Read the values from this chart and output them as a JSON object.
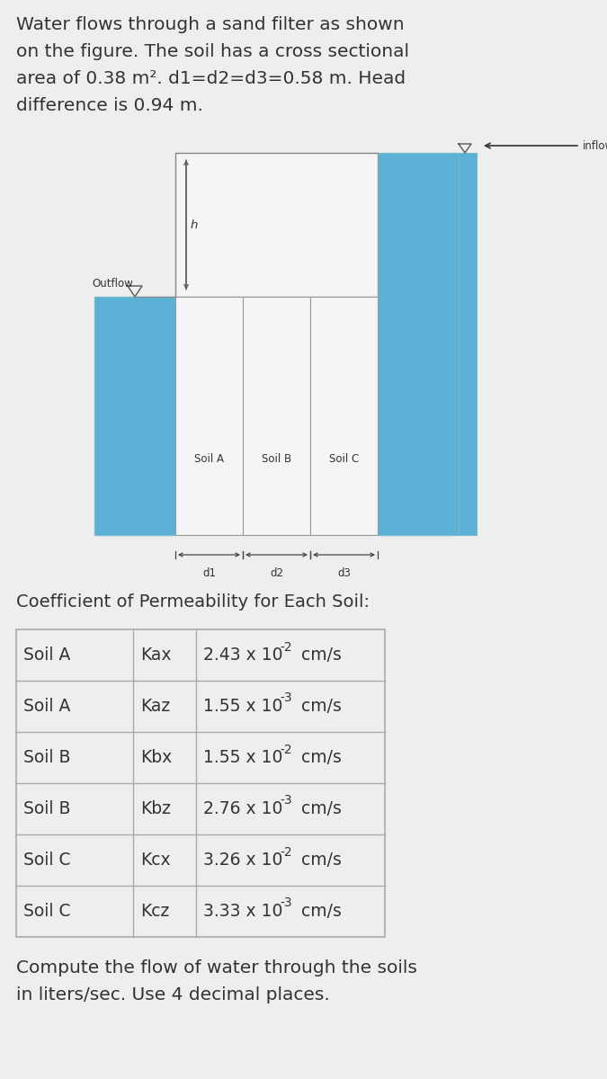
{
  "bg_color": "#eeeeee",
  "text_color": "#333333",
  "blue_color": "#5ab0d5",
  "white_color": "#f5f5f5",
  "border_color": "#999999",
  "header_text_lines": [
    "Water flows through a sand filter as shown",
    "on the figure. The soil has a cross sectional",
    "area of 0.38 m². d1=d2=d3=0.58 m. Head",
    "difference is 0.94 m."
  ],
  "header_fontsize": 14.5,
  "coeff_title": "Coefficient of Permeability for Each Soil:",
  "coeff_fontsize": 14,
  "table_rows": [
    [
      "Soil A",
      "Kax",
      "2.43 x 10",
      "-2",
      " cm/s"
    ],
    [
      "Soil A",
      "Kaz",
      "1.55 x 10",
      "-3",
      " cm/s"
    ],
    [
      "Soil B",
      "Kbx",
      "1.55 x 10",
      "-2",
      " cm/s"
    ],
    [
      "Soil B",
      "Kbz",
      "2.76 x 10",
      "-3",
      " cm/s"
    ],
    [
      "Soil C",
      "Kcx",
      "3.26 x 10",
      "-2",
      " cm/s"
    ],
    [
      "Soil C",
      "Kcz",
      "3.33 x 10",
      "-3",
      " cm/s"
    ]
  ],
  "table_fontsize": 13.5,
  "footer_lines": [
    "Compute the flow of water through the soils",
    "in liters/sec. Use 4 decimal places."
  ],
  "footer_fontsize": 14.5,
  "inflow_label": "inflow",
  "outflow_label": "Outflow",
  "soil_labels": [
    "Soil A",
    "Soil B",
    "Soil C"
  ],
  "d_labels": [
    "d1",
    "d2",
    "d3"
  ],
  "h_label": "h"
}
